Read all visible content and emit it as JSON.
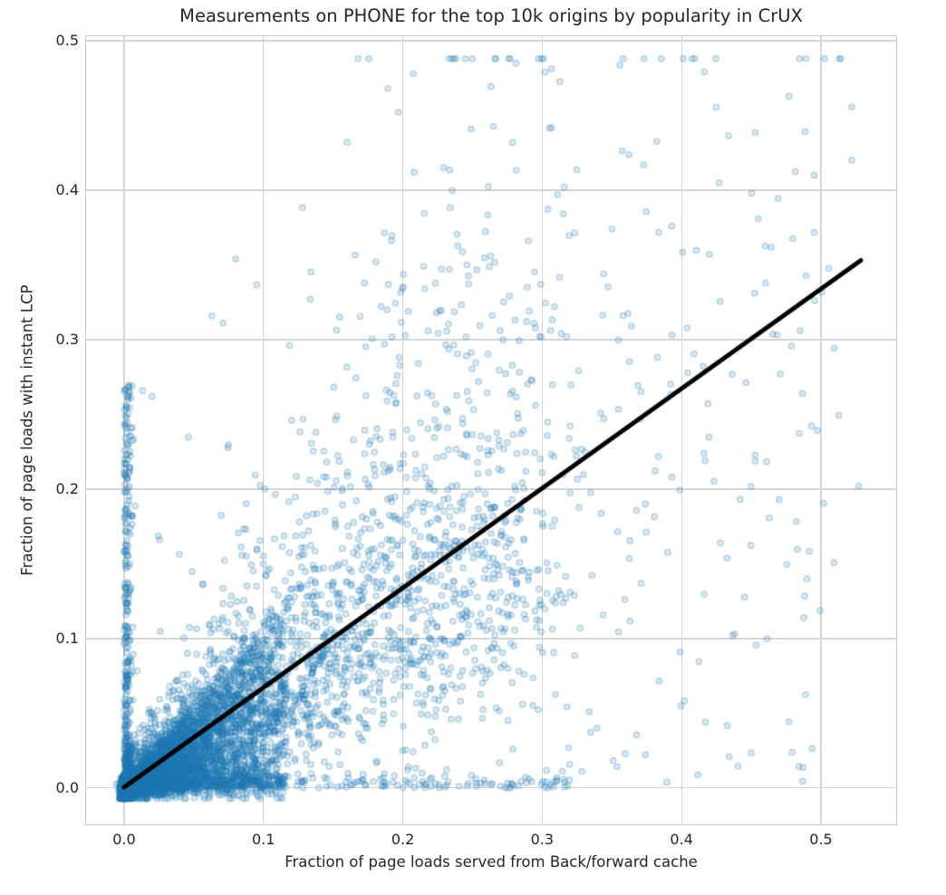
{
  "page": {
    "background": "#ffffff"
  },
  "chart_data": {
    "type": "scatter",
    "title": "Measurements on PHONE for the top 10k origins by popularity in CrUX",
    "xlabel": "Fraction of page loads served from Back/forward cache",
    "ylabel": "Fraction of page loads with instant LCP",
    "xlim": [
      -0.0273,
      0.554
    ],
    "ylim": [
      -0.0243,
      0.503
    ],
    "xticks": {
      "values": [
        0.0,
        0.1,
        0.2,
        0.3,
        0.4,
        0.5
      ],
      "labels": [
        "0.0",
        "0.1",
        "0.2",
        "0.3",
        "0.4",
        "0.5"
      ]
    },
    "yticks": {
      "values": [
        0.0,
        0.1,
        0.2,
        0.3,
        0.4,
        0.5
      ],
      "labels": [
        "0.0",
        "0.1",
        "0.2",
        "0.3",
        "0.4",
        "0.5"
      ]
    },
    "grid": {
      "show": true,
      "color": "#d6d6d6"
    },
    "spine_color": "#c8c8c8",
    "text_color": "#262626",
    "marker": {
      "radius": 3.2,
      "fill": "rgba(31,119,180,0.17)",
      "stroke": "rgba(31,119,180,0.30)",
      "stroke_width": 1.3,
      "base_color": "#1f77b4"
    },
    "trendline": {
      "x0": 0.0,
      "y0": 0.0005,
      "x1": 0.5286,
      "y1": 0.353,
      "color": "#000000",
      "width": 5
    },
    "n_points_approx": 8000,
    "scatter_cloud_model": {
      "seed": 1337,
      "note": "procedural approximation: ~8k origins, heavy mass at origin, diffuse cloud along y ~ 0.667x, strip hugging x=0 up to y~0.26, strip along y=0 out to x~0.32",
      "components": [
        {
          "type": "wedge",
          "n": 4300,
          "xPow": 2.6,
          "xScale": 0.115,
          "rPow": 1.6,
          "rMax": 1.08,
          "jitter": 0.004
        },
        {
          "type": "diagonal",
          "n": 2600,
          "tPow": 1.8,
          "xScale": 0.3,
          "xOffset": 0.0,
          "xNoise": 0.02,
          "slope": 0.667,
          "logSigma": 0.55,
          "yNoise": 0.012
        },
        {
          "type": "diagonal",
          "n": 260,
          "tPow": 1.5,
          "xScale": 0.42,
          "xOffset": 0.1,
          "xNoise": 0.02,
          "slope": 0.667,
          "logSigma": 0.42,
          "yNoise": 0.012
        },
        {
          "type": "vstrip",
          "n": 320,
          "xSigma": 0.0028,
          "yPow": 1.6,
          "yScale": 0.27
        },
        {
          "type": "hstrip",
          "n": 260,
          "xPow": 1.5,
          "xScale": 0.32,
          "ySigma": 0.005
        },
        {
          "type": "uniform",
          "n": 130,
          "xMax": 0.52,
          "yMax": 0.42
        }
      ]
    },
    "notable_points": [
      [
        0.16,
        0.432
      ],
      [
        0.302,
        0.479
      ],
      [
        0.311,
        0.397
      ],
      [
        0.316,
        0.402
      ],
      [
        0.263,
        0.356
      ],
      [
        0.246,
        0.35
      ],
      [
        0.215,
        0.349
      ],
      [
        0.299,
        0.337
      ],
      [
        0.344,
        0.344
      ],
      [
        0.35,
        0.374
      ],
      [
        0.393,
        0.376
      ],
      [
        0.455,
        0.381
      ],
      [
        0.42,
        0.357
      ],
      [
        0.485,
        0.306
      ],
      [
        0.527,
        0.202
      ],
      [
        0.393,
        0.208
      ],
      [
        0.442,
        0.193
      ],
      [
        0.47,
        0.193
      ],
      [
        0.374,
        0.19
      ],
      [
        0.371,
        0.137
      ],
      [
        0.399,
        0.091
      ],
      [
        0.08,
        0.354
      ],
      [
        0.071,
        0.311
      ],
      [
        0.063,
        0.316
      ],
      [
        0.003,
        0.26
      ],
      [
        0.02,
        0.262
      ],
      [
        0.358,
        0.316
      ],
      [
        0.364,
        0.309
      ],
      [
        0.31,
        0.128
      ],
      [
        0.3135,
        0.1295
      ],
      [
        0.317,
        0.127
      ],
      [
        0.32,
        0.131
      ],
      [
        0.323,
        0.129
      ],
      [
        0.3075,
        0.1255
      ],
      [
        0.312,
        0.132
      ],
      [
        0.315,
        0.124
      ]
    ]
  }
}
